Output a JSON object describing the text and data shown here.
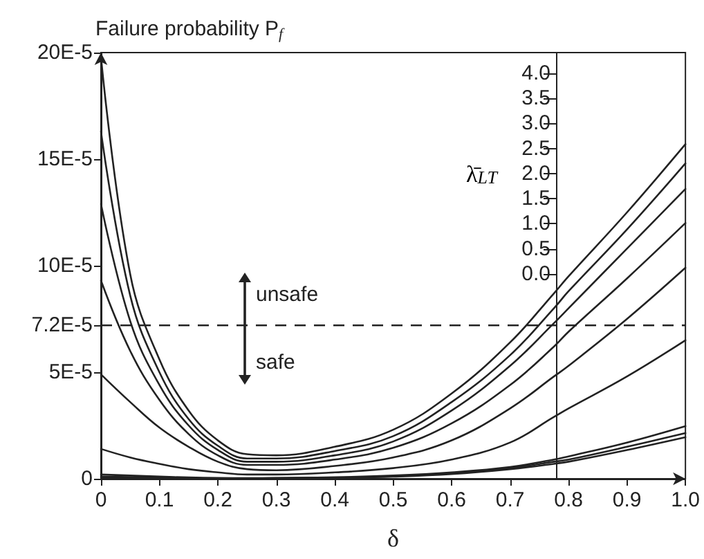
{
  "chart_data": {
    "type": "line",
    "ylabel": "Failure probability P$_{f}$",
    "xlabel": "δ",
    "y2label": "λ̄$_{LT}$",
    "x": [
      0,
      0.05,
      0.1,
      0.15,
      0.2,
      0.25,
      0.3,
      0.4,
      0.5,
      0.6,
      0.7,
      0.775,
      0.8,
      0.9,
      1.0
    ],
    "series": [
      {
        "color": "#222222",
        "values": [
          0.000198,
          9.6e-05,
          5.6e-05,
          3.2e-05,
          1.8e-05,
          1.15e-05,
          1.1e-05,
          1.5e-05,
          2.3e-05,
          4e-05,
          6.4e-05,
          8.7e-05,
          9.5e-05,
          0.000125,
          0.000157
        ]
      },
      {
        "color": "#222222",
        "values": [
          0.000163,
          8.6e-05,
          5e-05,
          2.8e-05,
          1.55e-05,
          9.5e-06,
          9.5e-06,
          1.3e-05,
          2e-05,
          3.6e-05,
          5.8e-05,
          8e-05,
          8.8e-05,
          0.000117,
          0.000148
        ]
      },
      {
        "color": "#222222",
        "values": [
          0.000129,
          7.4e-05,
          4.4e-05,
          2.5e-05,
          1.35e-05,
          8e-06,
          8e-06,
          1.1e-05,
          1.75e-05,
          3.2e-05,
          5.3e-05,
          7.3e-05,
          8e-05,
          0.000108,
          0.000136
        ]
      },
      {
        "color": "#222222",
        "values": [
          9.3e-05,
          6e-05,
          3.7e-05,
          2.1e-05,
          1.1e-05,
          6.5e-06,
          6.5e-06,
          9e-06,
          1.45e-05,
          2.6e-05,
          4.4e-05,
          6.2e-05,
          6.9e-05,
          9.4e-05,
          0.00012
        ]
      },
      {
        "color": "#222222",
        "values": [
          4.9e-05,
          3.6e-05,
          2.4e-05,
          1.5e-05,
          8e-06,
          4.5e-06,
          4e-06,
          6e-06,
          1e-05,
          1.8e-05,
          3.3e-05,
          4.8e-05,
          5.3e-05,
          7.5e-05,
          9.9e-05
        ]
      },
      {
        "color": "#222222",
        "values": [
          1.4e-05,
          1e-05,
          7e-06,
          4.5e-06,
          3e-06,
          2e-06,
          2e-06,
          3e-06,
          5e-06,
          9e-06,
          1.7e-05,
          2.9e-05,
          3.3e-05,
          4.8e-05,
          6.5e-05
        ]
      },
      {
        "color": "#222222",
        "values": [
          2e-06,
          1.5e-06,
          1e-06,
          6e-07,
          4e-07,
          3e-07,
          4e-07,
          7e-07,
          1.5e-06,
          3e-06,
          5.5e-06,
          9e-06,
          1.05e-05,
          1.7e-05,
          2.47e-05
        ]
      },
      {
        "color": "#222222",
        "values": [
          1e-06,
          8e-07,
          5e-07,
          3e-07,
          2e-07,
          2e-07,
          3e-07,
          5e-07,
          1.2e-06,
          2.5e-06,
          5e-06,
          8e-06,
          9e-06,
          1.5e-05,
          2.14e-05
        ]
      },
      {
        "color": "#222222",
        "values": [
          5e-07,
          4e-07,
          3e-07,
          2e-07,
          1e-07,
          1e-07,
          2e-07,
          4e-07,
          1e-06,
          2.2e-06,
          4.5e-06,
          7e-06,
          8e-06,
          1.35e-05,
          1.95e-05
        ]
      }
    ],
    "xlim": [
      0,
      1.0
    ],
    "xticks": [
      0,
      0.1,
      0.2,
      0.3,
      0.4,
      0.5,
      0.6,
      0.7,
      0.8,
      0.9,
      {
        "value": 1.0,
        "label": "1.0"
      }
    ],
    "ylim": [
      0,
      0.0002
    ],
    "yticks": [
      0,
      {
        "value": 5e-05,
        "label": "5E-5"
      },
      {
        "value": 7.2e-05,
        "label": "7.2E-5"
      },
      {
        "value": 0.0001,
        "label": "10E-5"
      },
      {
        "value": 0.00015,
        "label": "15E-5"
      },
      {
        "value": 0.0002,
        "label": "20E-5"
      }
    ],
    "y2lim": [
      -4.08,
      4.41
    ],
    "y2ticks": [
      {
        "value": 0,
        "label": "0.0"
      },
      {
        "value": 0.5,
        "label": "0.5"
      },
      {
        "value": 1,
        "label": "1.0"
      },
      {
        "value": 1.5,
        "label": "1.5"
      },
      {
        "value": 2,
        "label": "2.0"
      },
      {
        "value": 2.5,
        "label": "2.5"
      },
      {
        "value": 3,
        "label": "3.0"
      },
      {
        "value": 3.5,
        "label": "3.5"
      },
      {
        "value": 4,
        "label": "4.0"
      }
    ],
    "ref_lines": [
      {
        "axis": "y",
        "value": 7.2e-05,
        "line_style": "dashed",
        "color": "#222222"
      }
    ],
    "annotations": [
      "unsafe",
      "safe"
    ],
    "marker": "none",
    "line_style": "solid",
    "grid": false
  }
}
